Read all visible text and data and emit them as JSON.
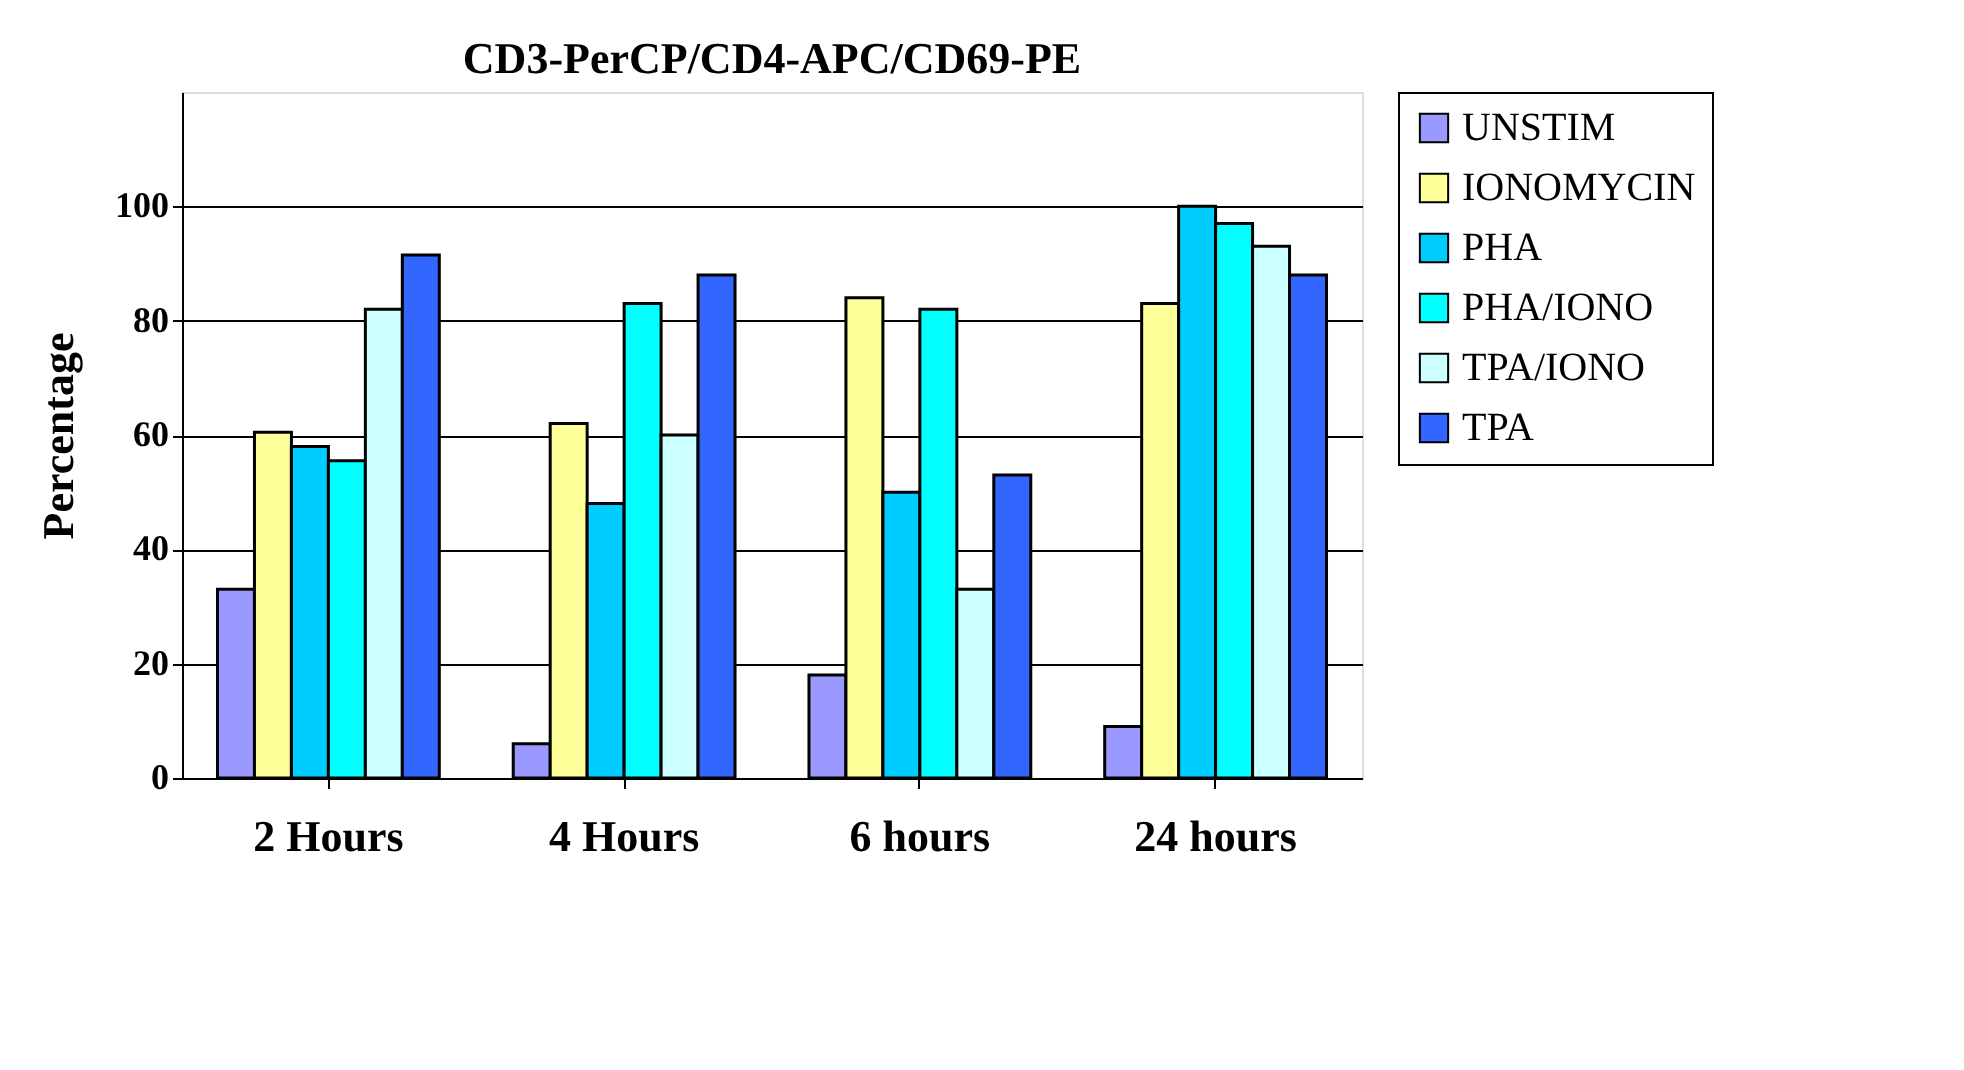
{
  "chart_data": {
    "type": "bar",
    "title": "CD3-PerCP/CD4-APC/CD69-PE",
    "ylabel": "Percentage",
    "categories": [
      "2 Hours",
      "4 Hours",
      "6 hours",
      "24 hours"
    ],
    "series": [
      {
        "name": "UNSTIM",
        "color": "#9999ff",
        "values": [
          33,
          6,
          18,
          9
        ]
      },
      {
        "name": "IONOMYCIN",
        "color": "#ffff99",
        "values": [
          60.5,
          62,
          84,
          83
        ]
      },
      {
        "name": "PHA",
        "color": "#00ccff",
        "values": [
          58,
          48,
          50,
          100
        ]
      },
      {
        "name": "PHA/IONO",
        "color": "#00ffff",
        "values": [
          55.5,
          83,
          82,
          97
        ]
      },
      {
        "name": "TPA/IONO",
        "color": "#ccffff",
        "values": [
          82,
          60,
          33,
          93
        ]
      },
      {
        "name": "TPA",
        "color": "#3366ff",
        "values": [
          91.5,
          88,
          53,
          88
        ]
      }
    ],
    "ylim": [
      0,
      120
    ],
    "yticks": [
      0,
      20,
      40,
      60,
      80,
      100
    ],
    "grid": "y",
    "legend": "right"
  }
}
